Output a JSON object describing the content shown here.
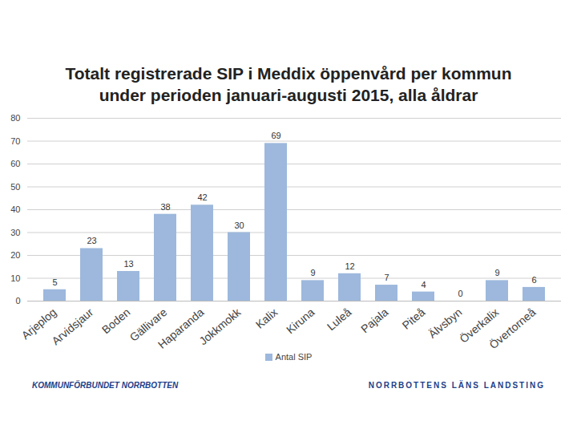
{
  "chart_data": {
    "type": "bar",
    "title": "Totalt registrerade SIP i Meddix öppenvård per kommun\nunder perioden januari-augusti 2015, alla åldrar",
    "categories": [
      "Arjeplog",
      "Arvidsjaur",
      "Boden",
      "Gällivare",
      "Haparanda",
      "Jokkmokk",
      "Kalix",
      "Kiruna",
      "Luleå",
      "Pajala",
      "Piteå",
      "Älvsbyn",
      "Överkalix",
      "Övertorneå"
    ],
    "series": [
      {
        "name": "Antal SIP",
        "color": "#9db8dc",
        "values": [
          5,
          23,
          13,
          38,
          42,
          30,
          69,
          9,
          12,
          7,
          4,
          0,
          9,
          6
        ]
      }
    ],
    "ylim": [
      0,
      80
    ],
    "yticks": [
      0,
      10,
      20,
      30,
      40,
      50,
      60,
      70,
      80
    ],
    "grid": true,
    "legend": "bottom",
    "data_labels": true,
    "annotations": [
      "KOMMUNFÖRBUNDET NORRBOTTEN",
      "NORRBOTTENS LÄNS LANDSTING"
    ]
  }
}
